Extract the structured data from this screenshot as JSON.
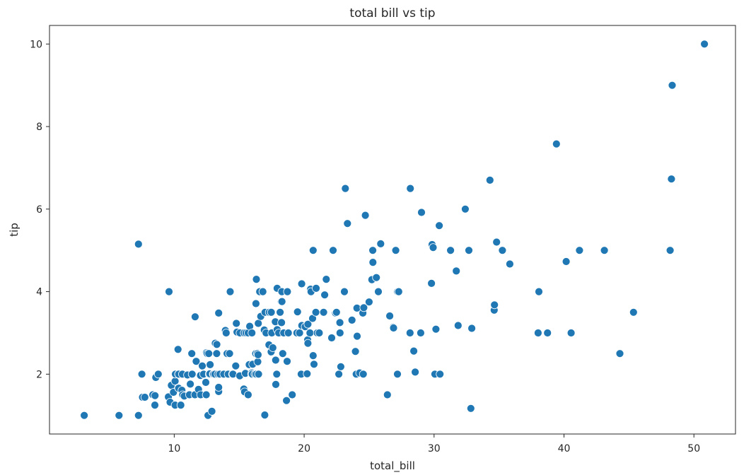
{
  "chart_data": {
    "type": "scatter",
    "title": "total bill vs tip",
    "xlabel": "total_bill",
    "ylabel": "tip",
    "xlim": [
      0.4,
      53.2
    ],
    "ylim": [
      0.55,
      10.45
    ],
    "xticks": [
      10,
      20,
      30,
      40,
      50
    ],
    "yticks": [
      2,
      4,
      6,
      8,
      10
    ],
    "grid": false,
    "colors": {
      "marker": "#1f77b4",
      "marker_edge": "#ffffff",
      "axes": "#262626"
    },
    "points": [
      [
        3.07,
        1.0
      ],
      [
        5.75,
        1.0
      ],
      [
        7.25,
        1.0
      ],
      [
        7.25,
        5.15
      ],
      [
        7.51,
        2.0
      ],
      [
        7.56,
        1.44
      ],
      [
        7.74,
        1.44
      ],
      [
        8.35,
        1.5
      ],
      [
        8.51,
        1.25
      ],
      [
        8.52,
        1.48
      ],
      [
        8.58,
        1.92
      ],
      [
        8.77,
        2.0
      ],
      [
        9.55,
        1.45
      ],
      [
        9.6,
        4.0
      ],
      [
        9.68,
        1.32
      ],
      [
        9.78,
        1.73
      ],
      [
        9.94,
        1.56
      ],
      [
        10.07,
        1.25
      ],
      [
        10.07,
        1.83
      ],
      [
        10.09,
        2.0
      ],
      [
        10.29,
        2.6
      ],
      [
        10.33,
        1.67
      ],
      [
        10.33,
        2.0
      ],
      [
        10.34,
        1.66
      ],
      [
        10.34,
        2.0
      ],
      [
        10.51,
        1.25
      ],
      [
        10.59,
        1.61
      ],
      [
        10.63,
        2.0
      ],
      [
        10.65,
        1.5
      ],
      [
        10.77,
        1.47
      ],
      [
        11.02,
        1.98
      ],
      [
        11.17,
        1.5
      ],
      [
        11.24,
        1.76
      ],
      [
        11.35,
        2.5
      ],
      [
        11.38,
        2.0
      ],
      [
        11.59,
        1.5
      ],
      [
        11.61,
        3.39
      ],
      [
        11.69,
        2.31
      ],
      [
        11.87,
        1.63
      ],
      [
        12.02,
        1.97
      ],
      [
        12.03,
        1.5
      ],
      [
        12.16,
        2.2
      ],
      [
        12.26,
        2.0
      ],
      [
        12.43,
        1.8
      ],
      [
        12.46,
        1.5
      ],
      [
        12.48,
        2.52
      ],
      [
        12.54,
        2.5
      ],
      [
        12.6,
        1.0
      ],
      [
        12.66,
        2.5
      ],
      [
        12.69,
        2.0
      ],
      [
        12.74,
        2.01
      ],
      [
        12.76,
        2.23
      ],
      [
        12.9,
        1.1
      ],
      [
        13.0,
        2.0
      ],
      [
        13.03,
        2.0
      ],
      [
        13.13,
        2.0
      ],
      [
        13.16,
        2.75
      ],
      [
        13.27,
        2.5
      ],
      [
        13.28,
        2.72
      ],
      [
        13.37,
        2.0
      ],
      [
        13.42,
        1.58
      ],
      [
        13.42,
        1.68
      ],
      [
        13.42,
        3.48
      ],
      [
        13.51,
        2.0
      ],
      [
        13.81,
        2.0
      ],
      [
        13.94,
        3.06
      ],
      [
        14.0,
        3.0
      ],
      [
        14.07,
        2.5
      ],
      [
        14.15,
        2.0
      ],
      [
        14.26,
        2.5
      ],
      [
        14.31,
        4.0
      ],
      [
        14.48,
        2.0
      ],
      [
        14.52,
        2.0
      ],
      [
        14.73,
        2.2
      ],
      [
        14.78,
        3.23
      ],
      [
        14.83,
        3.02
      ],
      [
        15.04,
        1.96
      ],
      [
        15.06,
        3.0
      ],
      [
        15.36,
        1.64
      ],
      [
        15.38,
        3.0
      ],
      [
        15.42,
        1.57
      ],
      [
        15.48,
        2.02
      ],
      [
        15.53,
        3.0
      ],
      [
        15.69,
        1.5
      ],
      [
        15.69,
        3.0
      ],
      [
        15.77,
        2.23
      ],
      [
        15.81,
        3.16
      ],
      [
        15.95,
        2.0
      ],
      [
        15.98,
        2.03
      ],
      [
        15.98,
        3.0
      ],
      [
        16.0,
        2.0
      ],
      [
        16.04,
        2.24
      ],
      [
        16.21,
        2.0
      ],
      [
        16.27,
        2.5
      ],
      [
        16.29,
        3.71
      ],
      [
        16.31,
        2.0
      ],
      [
        16.32,
        4.3
      ],
      [
        16.4,
        2.5
      ],
      [
        16.43,
        2.3
      ],
      [
        16.45,
        2.47
      ],
      [
        16.47,
        3.23
      ],
      [
        16.49,
        2.0
      ],
      [
        16.58,
        4.0
      ],
      [
        16.66,
        3.4
      ],
      [
        16.82,
        4.0
      ],
      [
        16.93,
        3.07
      ],
      [
        16.97,
        1.01
      ],
      [
        16.99,
        3.5
      ],
      [
        17.07,
        3.0
      ],
      [
        17.29,
        2.71
      ],
      [
        17.31,
        3.5
      ],
      [
        17.46,
        2.54
      ],
      [
        17.47,
        3.5
      ],
      [
        17.51,
        3.0
      ],
      [
        17.59,
        2.64
      ],
      [
        17.78,
        3.27
      ],
      [
        17.81,
        2.34
      ],
      [
        17.82,
        1.75
      ],
      [
        17.89,
        2.0
      ],
      [
        17.92,
        3.08
      ],
      [
        17.92,
        4.08
      ],
      [
        18.04,
        3.0
      ],
      [
        18.15,
        3.5
      ],
      [
        18.24,
        3.76
      ],
      [
        18.26,
        3.25
      ],
      [
        18.28,
        4.0
      ],
      [
        18.29,
        3.76
      ],
      [
        18.35,
        2.5
      ],
      [
        18.43,
        3.0
      ],
      [
        18.64,
        1.36
      ],
      [
        18.69,
        2.31
      ],
      [
        18.71,
        4.0
      ],
      [
        18.78,
        3.0
      ],
      [
        19.08,
        1.5
      ],
      [
        19.44,
        3.0
      ],
      [
        19.49,
        3.51
      ],
      [
        19.65,
        3.0
      ],
      [
        19.77,
        2.0
      ],
      [
        19.81,
        4.19
      ],
      [
        19.82,
        3.18
      ],
      [
        20.08,
        3.15
      ],
      [
        20.23,
        2.01
      ],
      [
        20.27,
        2.83
      ],
      [
        20.29,
        2.75
      ],
      [
        20.29,
        3.21
      ],
      [
        20.45,
        3.0
      ],
      [
        20.49,
        4.06
      ],
      [
        20.53,
        4.0
      ],
      [
        20.65,
        3.35
      ],
      [
        20.69,
        2.45
      ],
      [
        20.69,
        5.0
      ],
      [
        20.76,
        2.24
      ],
      [
        20.9,
        3.5
      ],
      [
        20.92,
        4.08
      ],
      [
        21.01,
        3.0
      ],
      [
        21.16,
        3.0
      ],
      [
        21.5,
        3.5
      ],
      [
        21.58,
        3.92
      ],
      [
        21.7,
        4.3
      ],
      [
        22.12,
        2.88
      ],
      [
        22.23,
        5.0
      ],
      [
        22.42,
        3.48
      ],
      [
        22.49,
        3.5
      ],
      [
        22.67,
        2.0
      ],
      [
        22.75,
        3.25
      ],
      [
        22.76,
        3.0
      ],
      [
        22.82,
        2.18
      ],
      [
        23.1,
        4.0
      ],
      [
        23.17,
        6.5
      ],
      [
        23.33,
        5.65
      ],
      [
        23.68,
        3.31
      ],
      [
        23.95,
        2.55
      ],
      [
        24.01,
        2.0
      ],
      [
        24.06,
        3.6
      ],
      [
        24.08,
        2.92
      ],
      [
        24.27,
        2.03
      ],
      [
        24.52,
        3.48
      ],
      [
        24.55,
        2.0
      ],
      [
        24.59,
        3.61
      ],
      [
        24.71,
        5.85
      ],
      [
        25.0,
        3.75
      ],
      [
        25.21,
        4.29
      ],
      [
        25.28,
        5.0
      ],
      [
        25.29,
        4.71
      ],
      [
        25.56,
        4.34
      ],
      [
        25.71,
        4.0
      ],
      [
        25.89,
        5.16
      ],
      [
        26.41,
        1.5
      ],
      [
        26.59,
        3.41
      ],
      [
        26.86,
        3.14
      ],
      [
        26.88,
        3.12
      ],
      [
        27.05,
        5.0
      ],
      [
        27.18,
        2.0
      ],
      [
        27.2,
        4.0
      ],
      [
        27.28,
        4.0
      ],
      [
        28.15,
        3.0
      ],
      [
        28.17,
        6.5
      ],
      [
        28.44,
        2.56
      ],
      [
        28.55,
        2.05
      ],
      [
        28.97,
        3.0
      ],
      [
        29.03,
        5.92
      ],
      [
        29.8,
        4.2
      ],
      [
        29.85,
        5.14
      ],
      [
        29.93,
        5.07
      ],
      [
        30.06,
        2.0
      ],
      [
        30.14,
        3.09
      ],
      [
        30.4,
        5.6
      ],
      [
        30.46,
        2.0
      ],
      [
        31.27,
        5.0
      ],
      [
        31.71,
        4.5
      ],
      [
        31.85,
        3.18
      ],
      [
        32.4,
        6.0
      ],
      [
        32.68,
        5.0
      ],
      [
        32.83,
        1.17
      ],
      [
        32.9,
        3.11
      ],
      [
        34.3,
        6.7
      ],
      [
        34.63,
        3.55
      ],
      [
        34.65,
        3.68
      ],
      [
        34.81,
        5.2
      ],
      [
        35.26,
        5.0
      ],
      [
        35.83,
        4.67
      ],
      [
        38.01,
        3.0
      ],
      [
        38.07,
        4.0
      ],
      [
        38.73,
        3.0
      ],
      [
        39.42,
        7.58
      ],
      [
        40.17,
        4.73
      ],
      [
        40.55,
        3.0
      ],
      [
        41.19,
        5.0
      ],
      [
        43.11,
        5.0
      ],
      [
        44.3,
        2.5
      ],
      [
        45.35,
        3.5
      ],
      [
        48.17,
        5.0
      ],
      [
        48.27,
        6.73
      ],
      [
        48.33,
        9.0
      ],
      [
        50.81,
        10.0
      ]
    ]
  }
}
